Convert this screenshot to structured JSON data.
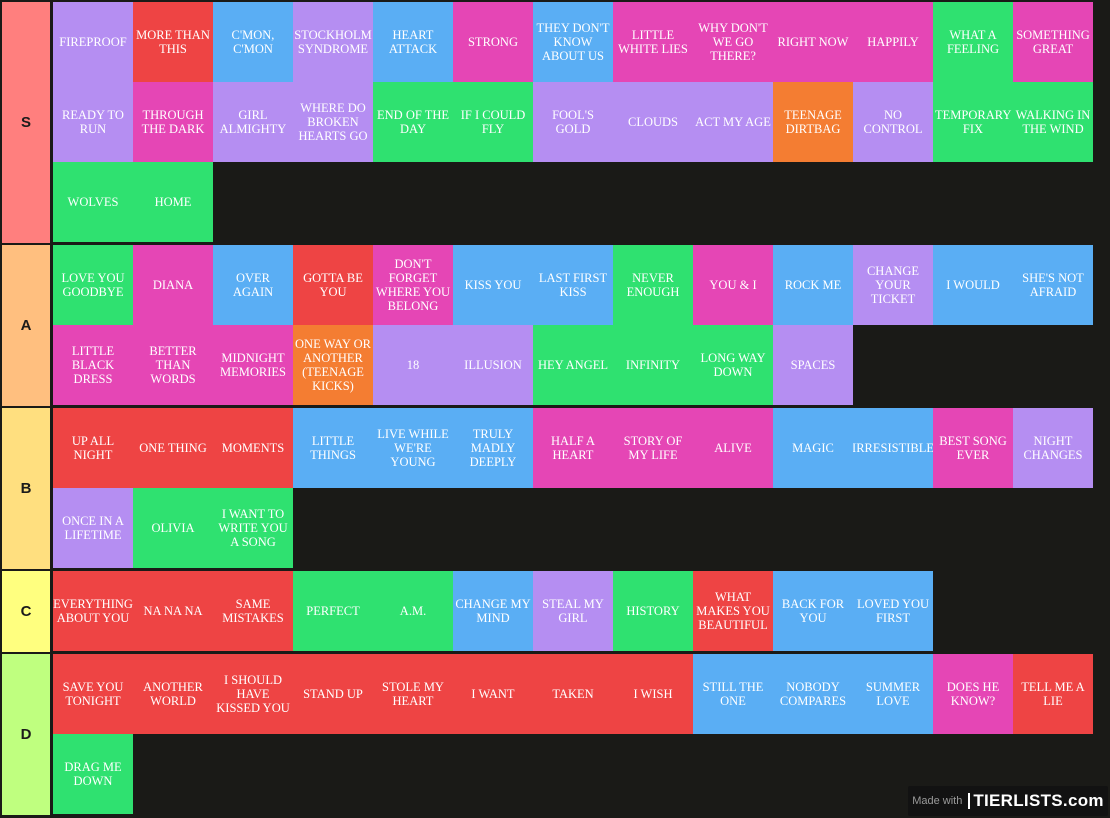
{
  "palette": {
    "purple": "#b58ef2",
    "red": "#ee4444",
    "blue": "#5aaef4",
    "pink": "#e546b5",
    "green": "#2fe170",
    "orange": "#f47d32"
  },
  "watermark": {
    "made_with": "Made with",
    "logo": "TIERLISTS.com"
  },
  "tiers": [
    {
      "label": "S",
      "label_color": "#ff7f7e",
      "items": [
        {
          "name": "FIREPROOF",
          "color": "purple"
        },
        {
          "name": "MORE THAN THIS",
          "color": "red"
        },
        {
          "name": "C'MON, C'MON",
          "color": "blue"
        },
        {
          "name": "STOCKHOLM SYNDROME",
          "color": "purple"
        },
        {
          "name": "HEART ATTACK",
          "color": "blue"
        },
        {
          "name": "STRONG",
          "color": "pink"
        },
        {
          "name": "THEY DON'T KNOW ABOUT US",
          "color": "blue"
        },
        {
          "name": "LITTLE WHITE LIES",
          "color": "pink"
        },
        {
          "name": "WHY DON'T WE GO THERE?",
          "color": "pink"
        },
        {
          "name": "RIGHT NOW",
          "color": "pink"
        },
        {
          "name": "HAPPILY",
          "color": "pink"
        },
        {
          "name": "WHAT A FEELING",
          "color": "green"
        },
        {
          "name": "SOMETHING GREAT",
          "color": "pink"
        },
        {
          "name": "READY TO RUN",
          "color": "purple"
        },
        {
          "name": "THROUGH THE DARK",
          "color": "pink"
        },
        {
          "name": "GIRL ALMIGHTY",
          "color": "purple"
        },
        {
          "name": "WHERE DO BROKEN HEARTS GO",
          "color": "purple"
        },
        {
          "name": "END OF THE DAY",
          "color": "green"
        },
        {
          "name": "IF I COULD FLY",
          "color": "green"
        },
        {
          "name": "FOOL'S GOLD",
          "color": "purple"
        },
        {
          "name": "CLOUDS",
          "color": "purple"
        },
        {
          "name": "ACT MY AGE",
          "color": "purple"
        },
        {
          "name": "TEENAGE DIRTBAG",
          "color": "orange"
        },
        {
          "name": "NO CONTROL",
          "color": "purple"
        },
        {
          "name": "TEMPORARY FIX",
          "color": "green"
        },
        {
          "name": "WALKING IN THE WIND",
          "color": "green"
        },
        {
          "name": "WOLVES",
          "color": "green"
        },
        {
          "name": "HOME",
          "color": "green"
        }
      ]
    },
    {
      "label": "A",
      "label_color": "#ffbf7f",
      "items": [
        {
          "name": "LOVE YOU GOODBYE",
          "color": "green"
        },
        {
          "name": "DIANA",
          "color": "pink"
        },
        {
          "name": "OVER AGAIN",
          "color": "blue"
        },
        {
          "name": "GOTTA BE YOU",
          "color": "red"
        },
        {
          "name": "DON'T FORGET WHERE YOU BELONG",
          "color": "pink"
        },
        {
          "name": "KISS YOU",
          "color": "blue"
        },
        {
          "name": "LAST FIRST KISS",
          "color": "blue"
        },
        {
          "name": "NEVER ENOUGH",
          "color": "green"
        },
        {
          "name": "YOU & I",
          "color": "pink"
        },
        {
          "name": "ROCK ME",
          "color": "blue"
        },
        {
          "name": "CHANGE YOUR TICKET",
          "color": "purple"
        },
        {
          "name": "I WOULD",
          "color": "blue"
        },
        {
          "name": "SHE'S NOT AFRAID",
          "color": "blue"
        },
        {
          "name": "LITTLE BLACK DRESS",
          "color": "pink"
        },
        {
          "name": "BETTER THAN WORDS",
          "color": "pink"
        },
        {
          "name": "MIDNIGHT MEMORIES",
          "color": "pink"
        },
        {
          "name": "ONE WAY OR ANOTHER (TEENAGE KICKS)",
          "color": "orange"
        },
        {
          "name": "18",
          "color": "purple"
        },
        {
          "name": "ILLUSION",
          "color": "purple"
        },
        {
          "name": "HEY ANGEL",
          "color": "green"
        },
        {
          "name": "INFINITY",
          "color": "green"
        },
        {
          "name": "LONG WAY DOWN",
          "color": "green"
        },
        {
          "name": "SPACES",
          "color": "purple"
        }
      ]
    },
    {
      "label": "B",
      "label_color": "#ffdf7f",
      "items": [
        {
          "name": "UP ALL NIGHT",
          "color": "red"
        },
        {
          "name": "ONE THING",
          "color": "red"
        },
        {
          "name": "MOMENTS",
          "color": "red"
        },
        {
          "name": "LITTLE THINGS",
          "color": "blue"
        },
        {
          "name": "LIVE WHILE WE'RE YOUNG",
          "color": "blue"
        },
        {
          "name": "TRULY MADLY DEEPLY",
          "color": "blue"
        },
        {
          "name": "HALF A HEART",
          "color": "pink"
        },
        {
          "name": "STORY OF MY LIFE",
          "color": "pink"
        },
        {
          "name": "ALIVE",
          "color": "pink"
        },
        {
          "name": "MAGIC",
          "color": "blue"
        },
        {
          "name": "IRRESISTIBLE",
          "color": "blue"
        },
        {
          "name": "BEST SONG EVER",
          "color": "pink"
        },
        {
          "name": "NIGHT CHANGES",
          "color": "purple"
        },
        {
          "name": "ONCE IN A LIFETIME",
          "color": "purple"
        },
        {
          "name": "OLIVIA",
          "color": "green"
        },
        {
          "name": "I WANT TO WRITE YOU A SONG",
          "color": "green"
        }
      ]
    },
    {
      "label": "C",
      "label_color": "#ffff7f",
      "items": [
        {
          "name": "EVERYTHING ABOUT YOU",
          "color": "red"
        },
        {
          "name": "NA NA NA",
          "color": "red"
        },
        {
          "name": "SAME MISTAKES",
          "color": "red"
        },
        {
          "name": "PERFECT",
          "color": "green"
        },
        {
          "name": "A.M.",
          "color": "green"
        },
        {
          "name": "CHANGE MY MIND",
          "color": "blue"
        },
        {
          "name": "STEAL MY GIRL",
          "color": "purple"
        },
        {
          "name": "HISTORY",
          "color": "green"
        },
        {
          "name": "WHAT MAKES YOU BEAUTIFUL",
          "color": "red"
        },
        {
          "name": "BACK FOR YOU",
          "color": "blue"
        },
        {
          "name": "LOVED YOU FIRST",
          "color": "blue"
        }
      ]
    },
    {
      "label": "D",
      "label_color": "#bfff7f",
      "items": [
        {
          "name": "SAVE YOU TONIGHT",
          "color": "red"
        },
        {
          "name": "ANOTHER WORLD",
          "color": "red"
        },
        {
          "name": "I SHOULD HAVE KISSED YOU",
          "color": "red"
        },
        {
          "name": "STAND UP",
          "color": "red"
        },
        {
          "name": "STOLE MY HEART",
          "color": "red"
        },
        {
          "name": "I WANT",
          "color": "red"
        },
        {
          "name": "TAKEN",
          "color": "red"
        },
        {
          "name": "I WISH",
          "color": "red"
        },
        {
          "name": "STILL THE ONE",
          "color": "blue"
        },
        {
          "name": "NOBODY COMPARES",
          "color": "blue"
        },
        {
          "name": "SUMMER LOVE",
          "color": "blue"
        },
        {
          "name": "DOES HE KNOW?",
          "color": "pink"
        },
        {
          "name": "TELL ME A LIE",
          "color": "red"
        },
        {
          "name": "DRAG ME DOWN",
          "color": "green"
        }
      ]
    }
  ]
}
